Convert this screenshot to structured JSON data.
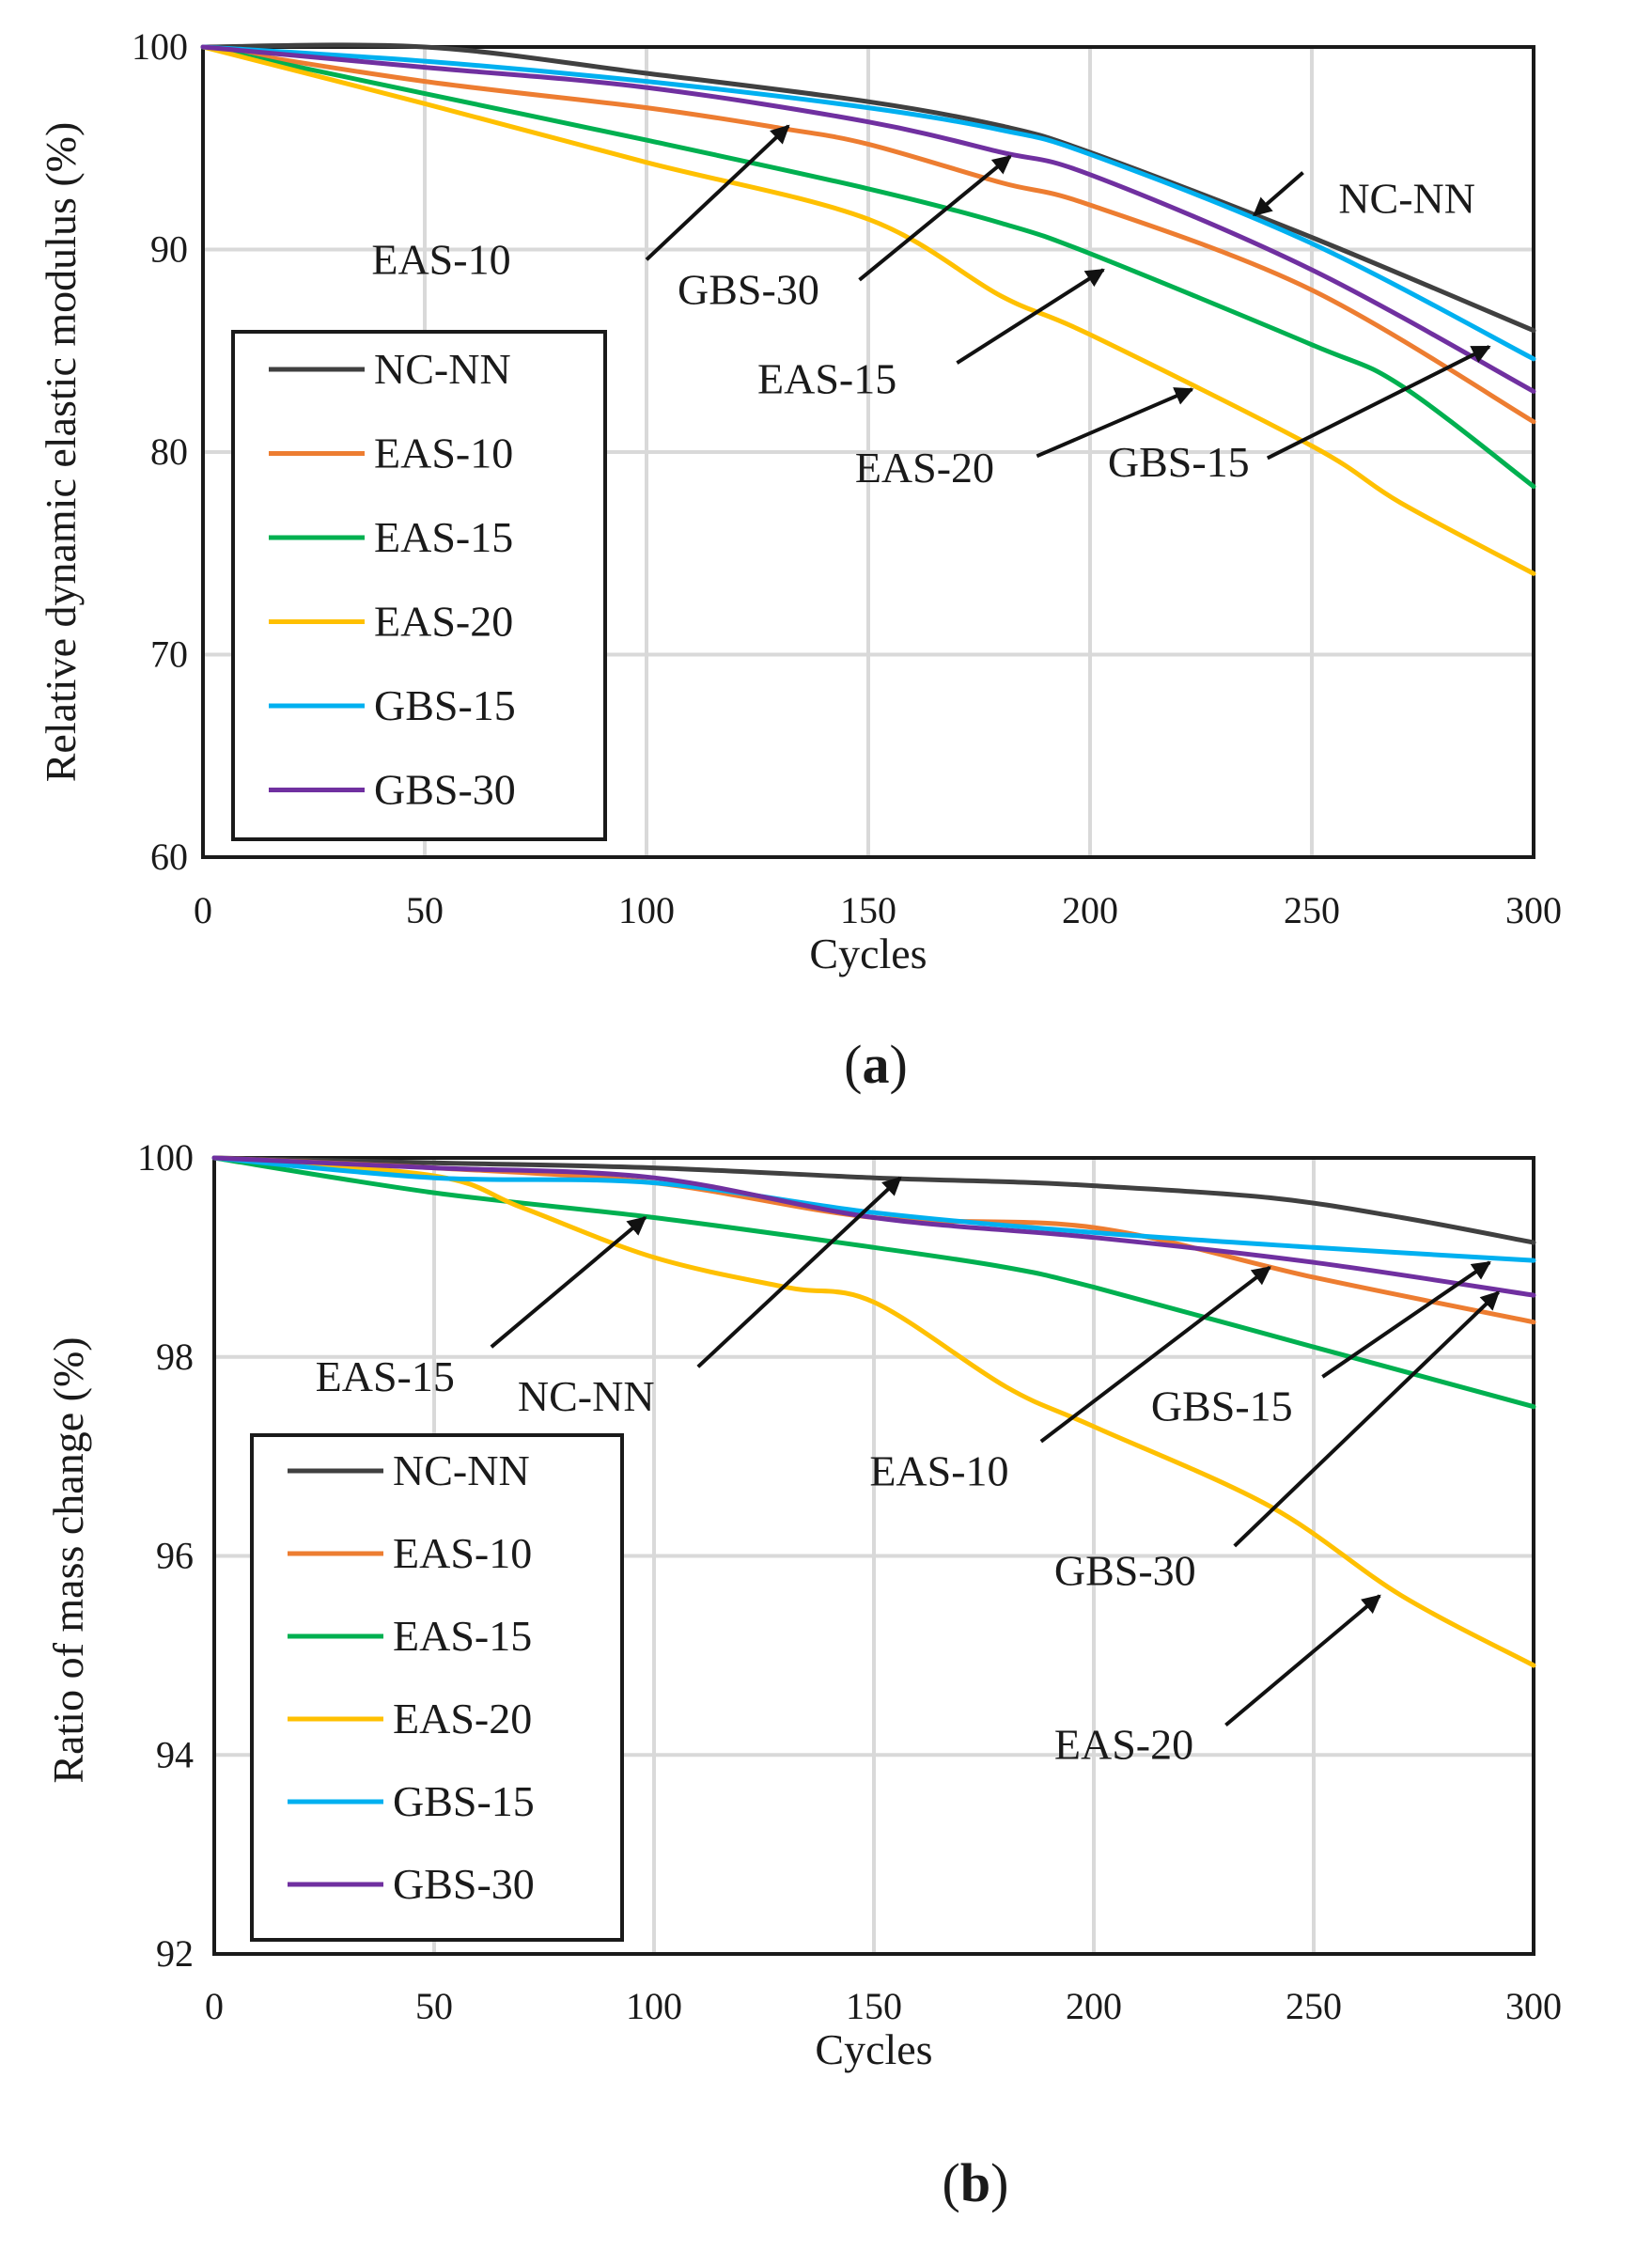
{
  "chart_data": [
    {
      "type": "line",
      "panel_label": "a",
      "title": "",
      "xlabel": "Cycles",
      "ylabel": "Relative dynamic elastic modulus (%)",
      "xlim": [
        0,
        300
      ],
      "ylim": [
        60,
        100
      ],
      "xticks": [
        0,
        50,
        100,
        150,
        200,
        250,
        300
      ],
      "yticks": [
        60,
        70,
        80,
        90,
        100
      ],
      "grid": true,
      "legend_position": "lower-left",
      "series": [
        {
          "name": "NC-NN",
          "color": "#404040",
          "points": [
            [
              0,
              100
            ],
            [
              50,
              100
            ],
            [
              100,
              98.7
            ],
            [
              150,
              97.3
            ],
            [
              180,
              96.1
            ],
            [
              200,
              94.8
            ],
            [
              250,
              90.6
            ],
            [
              300,
              86
            ]
          ]
        },
        {
          "name": "EAS-10",
          "color": "#ED7D31",
          "points": [
            [
              0,
              100
            ],
            [
              50,
              98.3
            ],
            [
              100,
              97
            ],
            [
              130,
              96
            ],
            [
              150,
              95.2
            ],
            [
              180,
              93.3
            ],
            [
              200,
              92.2
            ],
            [
              250,
              88
            ],
            [
              300,
              81.5
            ]
          ]
        },
        {
          "name": "EAS-15",
          "color": "#00B050",
          "points": [
            [
              0,
              100
            ],
            [
              50,
              97.7
            ],
            [
              100,
              95.4
            ],
            [
              150,
              93
            ],
            [
              180,
              91.3
            ],
            [
              200,
              89.8
            ],
            [
              250,
              85.3
            ],
            [
              270,
              83.3
            ],
            [
              300,
              78.3
            ]
          ]
        },
        {
          "name": "EAS-20",
          "color": "#FFC000",
          "points": [
            [
              0,
              100
            ],
            [
              50,
              97.2
            ],
            [
              100,
              94.3
            ],
            [
              150,
              91.5
            ],
            [
              180,
              87.7
            ],
            [
              200,
              85.8
            ],
            [
              250,
              80.3
            ],
            [
              270,
              77.5
            ],
            [
              300,
              74
            ]
          ]
        },
        {
          "name": "GBS-15",
          "color": "#00B0F0",
          "points": [
            [
              0,
              100
            ],
            [
              50,
              99.3
            ],
            [
              100,
              98.3
            ],
            [
              150,
              97
            ],
            [
              180,
              95.9
            ],
            [
              200,
              94.7
            ],
            [
              250,
              90.3
            ],
            [
              300,
              84.6
            ]
          ]
        },
        {
          "name": "GBS-30",
          "color": "#7030A0",
          "points": [
            [
              0,
              100
            ],
            [
              50,
              99
            ],
            [
              100,
              98
            ],
            [
              150,
              96.3
            ],
            [
              180,
              94.8
            ],
            [
              200,
              93.7
            ],
            [
              250,
              89
            ],
            [
              300,
              83
            ]
          ]
        }
      ],
      "annotations": [
        {
          "text": "NC-NN",
          "label_at": [
            256,
            92.5
          ],
          "arrow_from": [
            248,
            93.8
          ],
          "arrow_to": [
            237,
            91.7
          ]
        },
        {
          "text": "EAS-10",
          "label_at": [
            38,
            89.5
          ],
          "arrow_from": [
            100,
            89.5
          ],
          "arrow_to": [
            132,
            96.1
          ]
        },
        {
          "text": "GBS-30",
          "label_at": [
            107,
            88
          ],
          "arrow_from": [
            148,
            88.5
          ],
          "arrow_to": [
            182,
            94.6
          ]
        },
        {
          "text": "EAS-15",
          "label_at": [
            125,
            83.6
          ],
          "arrow_from": [
            170,
            84.4
          ],
          "arrow_to": [
            203,
            89
          ]
        },
        {
          "text": "EAS-20",
          "label_at": [
            147,
            79.2
          ],
          "arrow_from": [
            188,
            79.8
          ],
          "arrow_to": [
            223,
            83.1
          ]
        },
        {
          "text": "GBS-15",
          "label_at": [
            204,
            79.5
          ],
          "arrow_from": [
            240,
            79.7
          ],
          "arrow_to": [
            290,
            85.2
          ]
        }
      ]
    },
    {
      "type": "line",
      "panel_label": "b",
      "title": "",
      "xlabel": "Cycles",
      "ylabel": "Ratio of mass change (%)",
      "xlim": [
        0,
        300
      ],
      "ylim": [
        92,
        100
      ],
      "xticks": [
        0,
        50,
        100,
        150,
        200,
        250,
        300
      ],
      "yticks": [
        92,
        94,
        96,
        98,
        100
      ],
      "grid": true,
      "legend_position": "lower-left",
      "series": [
        {
          "name": "NC-NN",
          "color": "#404040",
          "points": [
            [
              0,
              100
            ],
            [
              50,
              99.95
            ],
            [
              100,
              99.9
            ],
            [
              150,
              99.8
            ],
            [
              180,
              99.76
            ],
            [
              200,
              99.72
            ],
            [
              240,
              99.6
            ],
            [
              270,
              99.4
            ],
            [
              300,
              99.15
            ]
          ]
        },
        {
          "name": "EAS-10",
          "color": "#ED7D31",
          "points": [
            [
              0,
              100
            ],
            [
              50,
              99.9
            ],
            [
              100,
              99.75
            ],
            [
              150,
              99.4
            ],
            [
              200,
              99.3
            ],
            [
              250,
              98.8
            ],
            [
              300,
              98.35
            ]
          ]
        },
        {
          "name": "EAS-15",
          "color": "#00B050",
          "points": [
            [
              0,
              100
            ],
            [
              50,
              99.65
            ],
            [
              100,
              99.4
            ],
            [
              150,
              99.1
            ],
            [
              180,
              98.9
            ],
            [
              200,
              98.7
            ],
            [
              250,
              98.1
            ],
            [
              300,
              97.5
            ]
          ]
        },
        {
          "name": "EAS-20",
          "color": "#FFC000",
          "points": [
            [
              0,
              100
            ],
            [
              50,
              99.82
            ],
            [
              70,
              99.5
            ],
            [
              100,
              99
            ],
            [
              130,
              98.7
            ],
            [
              150,
              98.55
            ],
            [
              180,
              97.7
            ],
            [
              200,
              97.3
            ],
            [
              240,
              96.5
            ],
            [
              270,
              95.6
            ],
            [
              300,
              94.9
            ]
          ]
        },
        {
          "name": "GBS-15",
          "color": "#00B0F0",
          "points": [
            [
              0,
              100
            ],
            [
              50,
              99.8
            ],
            [
              100,
              99.75
            ],
            [
              150,
              99.45
            ],
            [
              200,
              99.25
            ],
            [
              250,
              99.1
            ],
            [
              300,
              98.97
            ]
          ]
        },
        {
          "name": "GBS-30",
          "color": "#7030A0",
          "points": [
            [
              0,
              100
            ],
            [
              50,
              99.9
            ],
            [
              100,
              99.8
            ],
            [
              150,
              99.4
            ],
            [
              200,
              99.2
            ],
            [
              250,
              98.95
            ],
            [
              300,
              98.62
            ]
          ]
        }
      ],
      "annotations": [
        {
          "text": "EAS-15",
          "label_at": [
            23,
            97.8
          ],
          "arrow_from": [
            63,
            98.1
          ],
          "arrow_to": [
            98,
            99.4
          ]
        },
        {
          "text": "NC-NN",
          "label_at": [
            69,
            97.6
          ],
          "arrow_from": [
            110,
            97.9
          ],
          "arrow_to": [
            156,
            99.8
          ]
        },
        {
          "text": "EAS-10",
          "label_at": [
            149,
            96.85
          ],
          "arrow_from": [
            188,
            97.15
          ],
          "arrow_to": [
            240,
            98.9
          ]
        },
        {
          "text": "GBS-15",
          "label_at": [
            213,
            97.5
          ],
          "arrow_from": [
            252,
            97.8
          ],
          "arrow_to": [
            290,
            98.95
          ]
        },
        {
          "text": "GBS-30",
          "label_at": [
            191,
            95.85
          ],
          "arrow_from": [
            232,
            96.1
          ],
          "arrow_to": [
            292,
            98.65
          ]
        },
        {
          "text": "EAS-20",
          "label_at": [
            191,
            94.1
          ],
          "arrow_from": [
            230,
            94.3
          ],
          "arrow_to": [
            265,
            95.6
          ]
        }
      ]
    }
  ]
}
